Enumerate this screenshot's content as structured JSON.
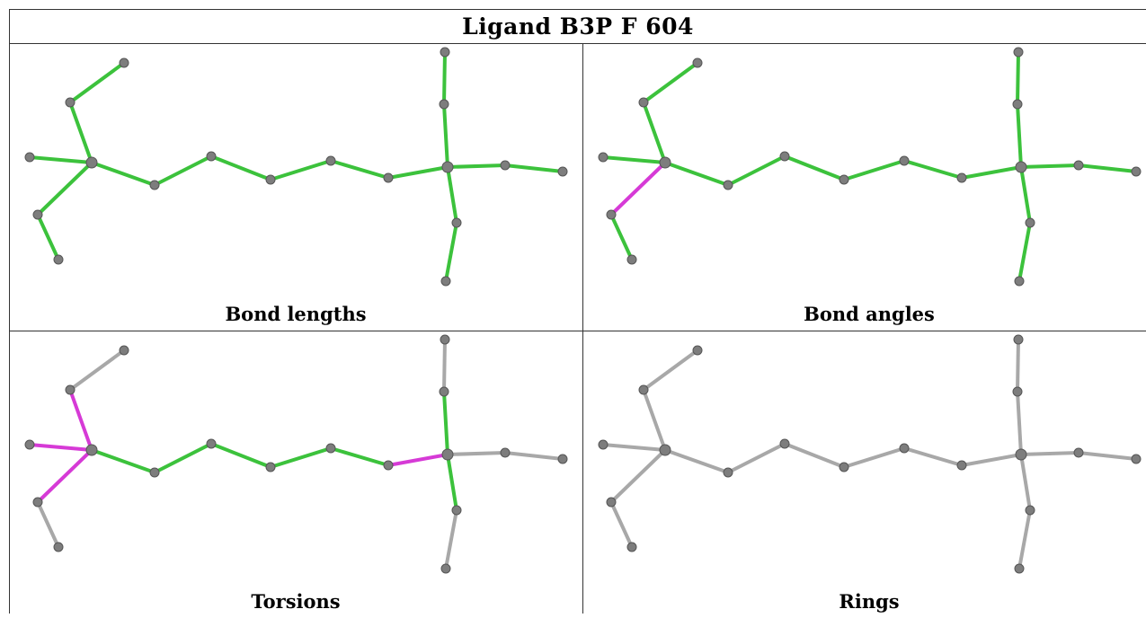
{
  "title": "Ligand B3P F 604",
  "colors": {
    "green": "#3cc23c",
    "magenta": "#d63ad6",
    "grey": "#a8a8a8",
    "atom": "#7d7d7d"
  },
  "panels": [
    {
      "caption": "Bond lengths",
      "highlight": []
    },
    {
      "caption": "Bond angles",
      "highlight": [
        [
          0,
          2
        ]
      ]
    },
    {
      "caption": "Torsions",
      "highlight": [
        [
          0,
          2
        ],
        [
          0,
          4
        ],
        [
          0,
          1
        ],
        [
          10,
          11
        ]
      ]
    },
    {
      "caption": "Rings",
      "highlight": "all-grey"
    }
  ]
}
